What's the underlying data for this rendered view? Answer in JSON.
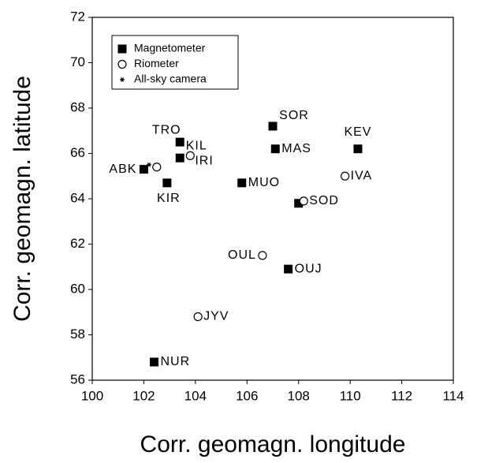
{
  "chart_data": {
    "type": "scatter",
    "x_label": "Corr. geomagn. longitude",
    "y_label": "Corr. geomagn. latitude",
    "xlim": [
      100,
      114
    ],
    "xticks": [
      100,
      102,
      104,
      106,
      108,
      110,
      112,
      114
    ],
    "ylim": [
      56,
      72
    ],
    "yticks": [
      56,
      58,
      60,
      62,
      64,
      66,
      68,
      70,
      72
    ],
    "grid": false,
    "legend": "upper left",
    "series": [
      {
        "name": "Magnetometer",
        "marker": "square",
        "color": "#000000",
        "x": [
          102.0,
          103.4,
          102.9,
          103.4,
          105.8,
          107.0,
          107.1,
          110.3,
          108.0,
          107.6,
          102.4
        ],
        "values": [
          65.3,
          66.5,
          64.7,
          65.8,
          64.7,
          67.2,
          66.2,
          66.2,
          63.8,
          60.9,
          56.8
        ],
        "labels": [
          "ABK",
          "TRO",
          "KIR",
          "KIL",
          "MUO",
          "SOR",
          "MAS",
          "KEV",
          null,
          "OUJ",
          "NUR"
        ]
      },
      {
        "name": "Riometer",
        "marker": "circle",
        "color": "#000000",
        "x": [
          102.5,
          103.8,
          109.8,
          108.2,
          106.6,
          104.1
        ],
        "values": [
          65.4,
          65.9,
          65.0,
          63.9,
          61.5,
          58.8
        ],
        "labels": [
          null,
          "IRI",
          "IVA",
          "SOD",
          "OUL",
          "JYV"
        ]
      },
      {
        "name": "All-sky camera",
        "marker": "asterisk",
        "color": "#000000",
        "x": [
          102.2
        ],
        "values": [
          65.5
        ],
        "labels": [
          null
        ]
      }
    ]
  }
}
